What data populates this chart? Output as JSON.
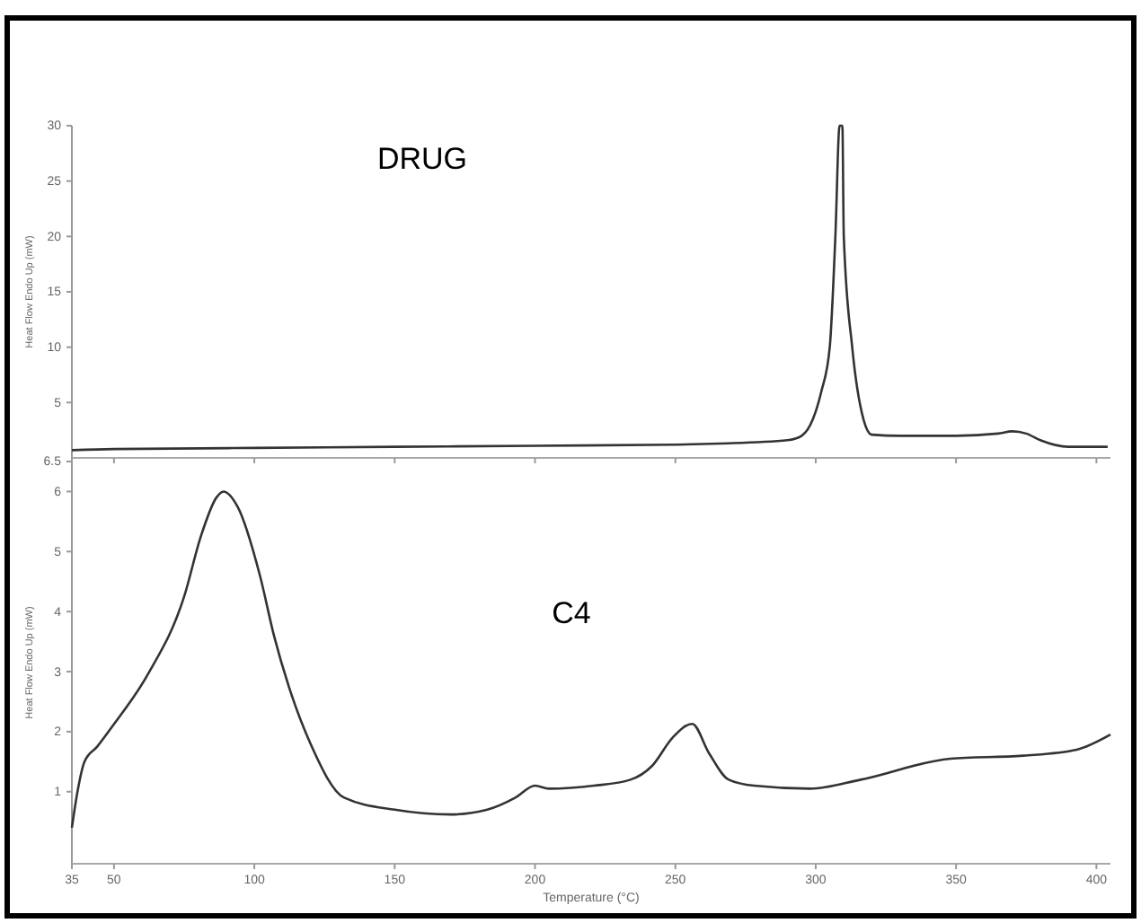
{
  "chart_data": [
    {
      "type": "line",
      "title": "DRUG",
      "ylabel": "Heat Flow Endo Up (mW)",
      "xlim": [
        35,
        405
      ],
      "xticks": [
        35,
        50,
        100,
        150,
        200,
        250,
        300,
        350,
        400
      ],
      "ylim": [
        0,
        30
      ],
      "yticks": [
        5,
        10,
        15,
        20,
        25,
        30
      ],
      "tick_labels": "y",
      "grid": false,
      "marker": "none",
      "line_style": "solid",
      "series": [
        {
          "color": "#333333",
          "x": [
            35,
            50,
            100,
            150,
            200,
            250,
            266,
            290,
            295,
            299,
            302,
            305,
            307,
            308.5,
            309.5,
            310,
            313,
            317,
            320,
            330,
            350,
            365,
            370,
            375,
            380,
            390,
            400,
            404
          ],
          "values": [
            0.7,
            0.8,
            0.9,
            1,
            1.1,
            1.2,
            1.3,
            1.6,
            2,
            3.5,
            6,
            10,
            20,
            30,
            30,
            20,
            10,
            3.5,
            2.1,
            2,
            2,
            2.2,
            2.4,
            2.2,
            1.6,
            1,
            1,
            1
          ]
        }
      ]
    },
    {
      "type": "line",
      "title": "C4",
      "xlabel": "Temperature (°C)",
      "ylabel": "Heat Flow Endo Up (mW)",
      "xlim": [
        35,
        405
      ],
      "xticks": [
        35,
        50,
        100,
        150,
        200,
        250,
        300,
        350,
        400
      ],
      "ylim": [
        -0.2,
        6.5
      ],
      "yticks": [
        1,
        2,
        3,
        4,
        5,
        6,
        6.5
      ],
      "grid": false,
      "marker": "none",
      "line_style": "solid",
      "series": [
        {
          "color": "#333333",
          "x": [
            35,
            37,
            39.5,
            44,
            49.6,
            62,
            75,
            81,
            86.5,
            89,
            94,
            102,
            107,
            113,
            120,
            132,
            150,
            170,
            183,
            193,
            200,
            205,
            221,
            234,
            241.7,
            249,
            256,
            262,
            269,
            278,
            298,
            316,
            348,
            374,
            393,
            405
          ],
          "values": [
            0.4,
            1,
            1.5,
            1.75,
            2.1,
            2.95,
            4.25,
            5.26,
            5.9,
            6,
            5.75,
            4.6,
            3.6,
            2.65,
            1.8,
            0.9,
            0.7,
            0.62,
            0.7,
            0.9,
            1.1,
            1.05,
            1.1,
            1.2,
            1.43,
            1.9,
            2.13,
            1.64,
            1.2,
            1.1,
            1.05,
            1.2,
            1.55,
            1.6,
            1.7,
            1.95
          ]
        }
      ]
    }
  ]
}
